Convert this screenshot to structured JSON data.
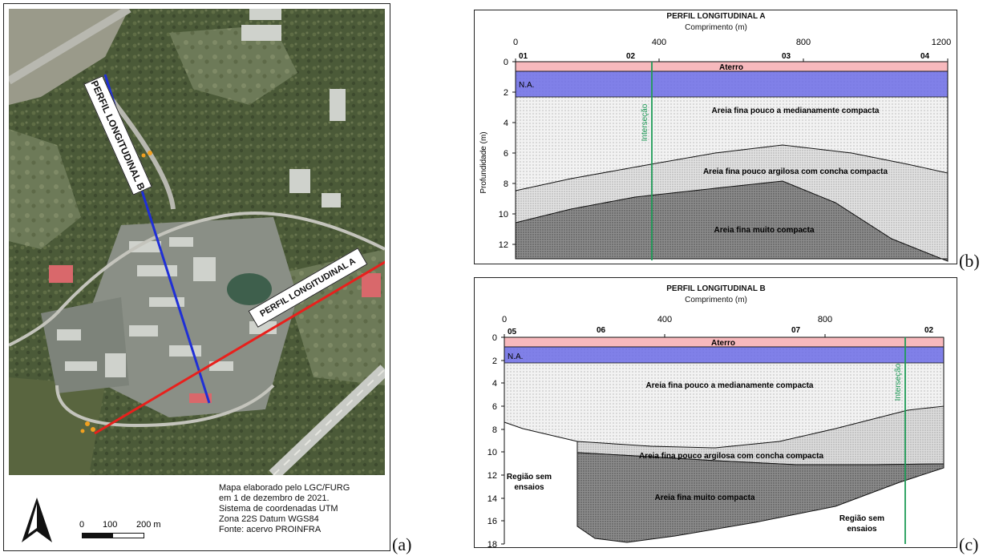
{
  "panel_a": {
    "tag": "(a)",
    "profile_a_label": "PERFIL LONGITUDINAL A",
    "profile_b_label": "PERFIL LONGITUDINAL B",
    "scale": {
      "zero": "0",
      "mid": "100",
      "end": "200 m"
    },
    "credits": [
      "Mapa elaborado pelo LGC/FURG",
      "em 1 de dezembro de 2021.",
      "Sistema de coordenadas UTM",
      "Zona 22S Datum WGS84",
      "Fonte: acervo PROINFRA"
    ],
    "north_icon": "north-arrow-icon",
    "colors": {
      "profile_a": "#e8201c",
      "profile_b": "#1f2fd6"
    }
  },
  "panel_b": {
    "tag": "(b)",
    "title": "PERFIL LONGITUDINAL A",
    "xlabel": "Comprimento (m)",
    "ylabel": "Profundidade (m)",
    "x_ticks": [
      "0",
      "400",
      "800",
      "1200"
    ],
    "y_ticks": [
      "0",
      "2",
      "4",
      "6",
      "8",
      "10",
      "12"
    ],
    "boreholes": [
      "01",
      "02",
      "03",
      "04"
    ],
    "layers": {
      "aterro": "Aterro",
      "na": "N.A.",
      "areia1": "Areia fina pouco a medianamente compacta",
      "areia2": "Areia fina pouco argilosa com concha compacta",
      "areia3": "Areia fina muito compacta"
    },
    "intersection": "Interseção"
  },
  "panel_c": {
    "tag": "(c)",
    "title": "PERFIL LONGITUDINAL B",
    "xlabel": "Comprimento (m)",
    "x_ticks": [
      "0",
      "400",
      "800"
    ],
    "y_ticks": [
      "0",
      "2",
      "4",
      "6",
      "8",
      "10",
      "12",
      "14",
      "16",
      "18"
    ],
    "boreholes": [
      "05",
      "06",
      "07",
      "02"
    ],
    "layers": {
      "aterro": "Aterro",
      "na": "N.A.",
      "areia1": "Areia fina pouco a medianamente compacta",
      "areia2": "Areia fina pouco argilosa com concha compacta",
      "areia3": "Areia fina muito compacta"
    },
    "regiao_left": [
      "Região sem",
      "ensaios"
    ],
    "regiao_right": [
      "Região sem",
      "ensaios"
    ],
    "intersection": "Interseção"
  },
  "colors": {
    "aterro": "#f7b9bd",
    "na": "#6c6ce6",
    "layer1": "#f1f1f1",
    "layer2": "#dcdcdc",
    "layer3": "#8c8c8c",
    "intersection": "#1e9b57"
  }
}
